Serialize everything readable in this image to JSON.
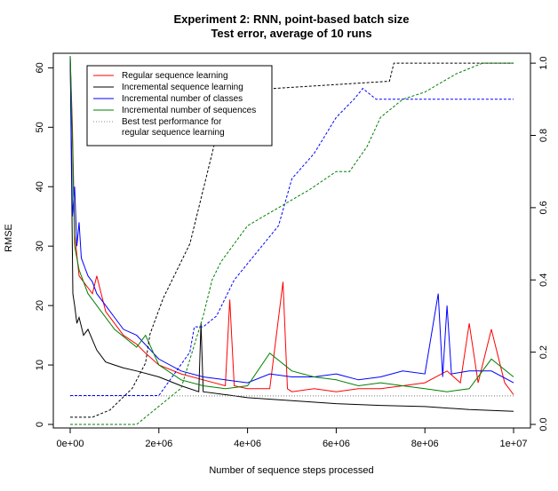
{
  "chart_data": {
    "type": "line",
    "title": "Experiment 2: RNN, point-based batch size",
    "subtitle": "Test error, average of 10 runs",
    "xlabel": "Number of sequence steps processed",
    "ylabel": "RMSE",
    "xlim": [
      0,
      10000000
    ],
    "ylim": [
      0,
      62
    ],
    "y2lim": [
      0,
      1.02
    ],
    "x_ticks": [
      0,
      2000000,
      4000000,
      6000000,
      8000000,
      10000000
    ],
    "x_tick_labels": [
      "0e+00",
      "2e+06",
      "4e+06",
      "6e+06",
      "8e+06",
      "1e+07"
    ],
    "y_ticks": [
      0,
      10,
      20,
      30,
      40,
      50,
      60
    ],
    "y_tick_labels": [
      "0",
      "10",
      "20",
      "30",
      "40",
      "50",
      "60"
    ],
    "y2_ticks": [
      0,
      0.2,
      0.4,
      0.6,
      0.8,
      1.0
    ],
    "y2_tick_labels": [
      "0.0",
      "0.2",
      "0.4",
      "0.6",
      "0.8",
      "1.0"
    ],
    "grid": false,
    "legend_position": "top-left",
    "legend": [
      {
        "label": "Regular sequence learning",
        "color": "#ff0000",
        "style": "solid"
      },
      {
        "label": "Incremental sequence learning",
        "color": "#000000",
        "style": "solid"
      },
      {
        "label": "Incremental number of classes",
        "color": "#0000ff",
        "style": "solid"
      },
      {
        "label": "Incremental number of sequences",
        "color": "#008000",
        "style": "solid"
      },
      {
        "label": "Best test performance for",
        "label2": "regular sequence learning",
        "color": "#888888",
        "style": "dotted"
      }
    ],
    "series": [
      {
        "axis": "left",
        "color": "#ff0000",
        "style": "solid",
        "x": [
          0,
          50000,
          100000,
          200000,
          300000,
          400000,
          500000,
          600000,
          800000,
          1000000,
          1200000,
          1500000,
          1700000,
          2000000,
          2500000,
          3000000,
          3500000,
          3600000,
          3700000,
          4000000,
          4500000,
          4800000,
          4900000,
          5000000,
          5500000,
          6000000,
          6500000,
          7000000,
          7500000,
          8000000,
          8500000,
          8800000,
          9000000,
          9200000,
          9500000,
          9800000,
          10000000
        ],
        "y": [
          62,
          50,
          32,
          25,
          24,
          23,
          22,
          25,
          19,
          17,
          15,
          13.5,
          12,
          10,
          8.5,
          7.5,
          6.5,
          21,
          6.5,
          6,
          6,
          24,
          6,
          5.5,
          6,
          5.5,
          6,
          6,
          6.5,
          7,
          9,
          7,
          17,
          7,
          16,
          7,
          5
        ]
      },
      {
        "axis": "left",
        "color": "#000000",
        "style": "solid",
        "x": [
          0,
          30000,
          60000,
          100000,
          150000,
          200000,
          300000,
          400000,
          600000,
          800000,
          1000000,
          1200000,
          1500000,
          2000000,
          2500000,
          2900000,
          2950000,
          3000000,
          3500000,
          4000000,
          5000000,
          6000000,
          7000000,
          8000000,
          9000000,
          10000000
        ],
        "y": [
          62,
          42,
          22,
          20,
          17,
          18,
          15,
          16,
          12.5,
          10.5,
          10,
          9.5,
          9,
          8,
          6.5,
          5.5,
          17,
          5.5,
          5,
          4.5,
          4,
          3.5,
          3.2,
          3,
          2.5,
          2.2
        ]
      },
      {
        "axis": "left",
        "color": "#0000ff",
        "style": "solid",
        "x": [
          0,
          50000,
          100000,
          150000,
          200000,
          250000,
          300000,
          350000,
          400000,
          500000,
          600000,
          800000,
          1000000,
          1200000,
          1500000,
          2000000,
          2500000,
          3000000,
          3500000,
          4000000,
          4500000,
          5000000,
          5500000,
          6000000,
          6500000,
          7000000,
          7500000,
          8000000,
          8300000,
          8400000,
          8500000,
          8600000,
          9000000,
          9500000,
          10000000
        ],
        "y": [
          62,
          35,
          40,
          30,
          34,
          28,
          27,
          26,
          25,
          24,
          22,
          20,
          18,
          16,
          15,
          11,
          9,
          8,
          7.5,
          7,
          8.5,
          8,
          8,
          8.5,
          7.5,
          8,
          9,
          8.5,
          22,
          8,
          20,
          8.5,
          9,
          9,
          7
        ]
      },
      {
        "axis": "left",
        "color": "#008000",
        "style": "solid",
        "x": [
          0,
          50000,
          100000,
          200000,
          300000,
          400000,
          500000,
          700000,
          1000000,
          1500000,
          1700000,
          2000000,
          2500000,
          3000000,
          3500000,
          4000000,
          4500000,
          5000000,
          5500000,
          6000000,
          6500000,
          7000000,
          7500000,
          8000000,
          8500000,
          9000000,
          9500000,
          10000000
        ],
        "y": [
          62,
          48,
          30,
          26,
          24,
          22,
          21,
          19,
          16,
          13,
          15,
          10,
          7.5,
          6.5,
          6,
          6.5,
          12,
          9,
          8,
          7.5,
          6.5,
          7,
          6.5,
          6,
          5.5,
          6,
          11,
          8
        ]
      },
      {
        "axis": "left",
        "color": "#777777",
        "style": "dotted",
        "x": [
          0,
          10000000
        ],
        "y": [
          4.8,
          4.8
        ]
      },
      {
        "axis": "right",
        "color": "#000000",
        "style": "dashed",
        "x": [
          0,
          500000,
          900000,
          1400000,
          1700000,
          1800000,
          2100000,
          2700000,
          2900000,
          3300000,
          3500000,
          4000000,
          4600000,
          7200000,
          7300000,
          10000000
        ],
        "y": [
          0.02,
          0.02,
          0.04,
          0.1,
          0.17,
          0.25,
          0.35,
          0.5,
          0.6,
          0.8,
          0.85,
          0.9,
          0.93,
          0.95,
          1.0,
          1.0
        ]
      },
      {
        "axis": "right",
        "color": "#0000ff",
        "style": "dashed",
        "x": [
          0,
          2000000,
          2700000,
          2800000,
          3000000,
          3300000,
          3700000,
          4700000,
          5000000,
          5500000,
          6000000,
          6400000,
          6600000,
          6900000,
          10000000
        ],
        "y": [
          0.08,
          0.08,
          0.2,
          0.27,
          0.27,
          0.3,
          0.4,
          0.55,
          0.68,
          0.75,
          0.85,
          0.9,
          0.93,
          0.9,
          0.9
        ]
      },
      {
        "axis": "right",
        "color": "#008000",
        "style": "dashed",
        "x": [
          0,
          1500000,
          2500000,
          3000000,
          3200000,
          3400000,
          4000000,
          5400000,
          6000000,
          6300000,
          6700000,
          7000000,
          7500000,
          8000000,
          8700000,
          9300000,
          10000000
        ],
        "y": [
          0.0,
          0.0,
          0.1,
          0.3,
          0.4,
          0.45,
          0.55,
          0.65,
          0.7,
          0.7,
          0.77,
          0.85,
          0.9,
          0.92,
          0.97,
          1.0,
          1.0
        ]
      }
    ]
  }
}
